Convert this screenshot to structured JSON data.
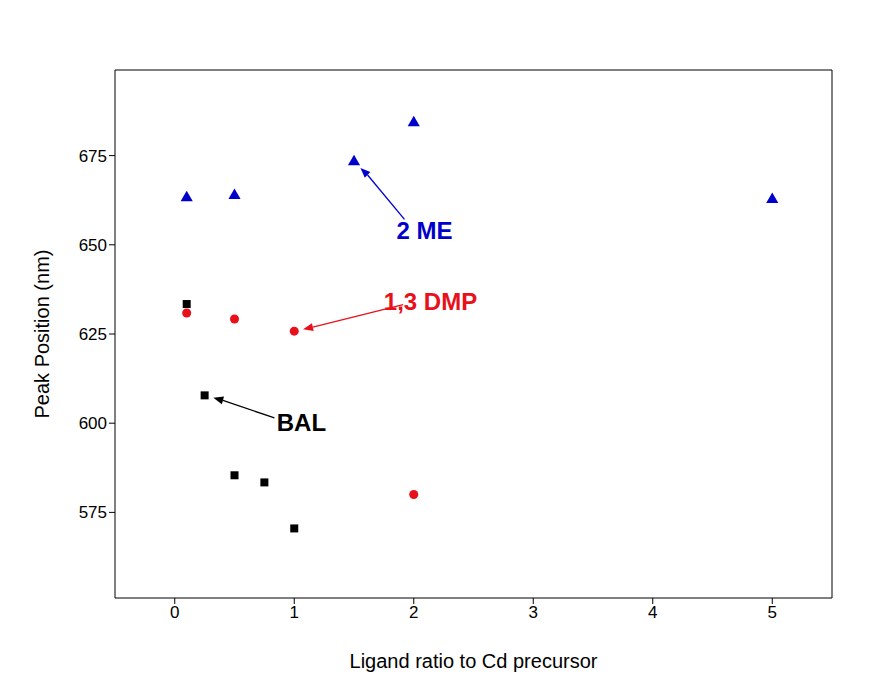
{
  "chart_data": {
    "type": "scatter",
    "x_label": "Ligand ratio to Cd precursor",
    "y_label": "Peak Position (nm)",
    "xlim": [
      -0.5,
      5.5
    ],
    "xticks": [
      0,
      1,
      2,
      3,
      4,
      5
    ],
    "ylim": [
      551,
      699
    ],
    "yticks": [
      575,
      600,
      625,
      650,
      675
    ],
    "series": [
      {
        "name": "2 ME",
        "color": "#0000cc",
        "marker": "triangle",
        "x": [
          0.1,
          0.5,
          1.5,
          2,
          5
        ],
        "values": [
          663.2,
          663.8,
          673.3,
          684.2,
          662.7
        ]
      },
      {
        "name": "1,3 DMP",
        "color": "#e8101a",
        "marker": "circle",
        "x": [
          0.1,
          0.5,
          1,
          2
        ],
        "values": [
          630.9,
          629.2,
          625.8,
          580.0
        ]
      },
      {
        "name": "BAL",
        "color": "#000000",
        "marker": "square",
        "x": [
          0.1,
          0.25,
          0.5,
          0.75,
          1
        ],
        "values": [
          633.4,
          607.8,
          585.4,
          583.4,
          570.5
        ]
      }
    ],
    "annotations": [
      {
        "text": "2 ME",
        "color": "#0000cc",
        "x": 2.09,
        "y": 654,
        "target": [
          1.5,
          673.3
        ]
      },
      {
        "text": "1,3 DMP",
        "color": "#e8101a",
        "x": 2.14,
        "y": 634.2,
        "target": [
          1,
          625.8
        ]
      },
      {
        "text": "BAL",
        "color": "#000000",
        "x": 1.06,
        "y": 600.3,
        "target": [
          0.25,
          607.8
        ]
      }
    ]
  }
}
